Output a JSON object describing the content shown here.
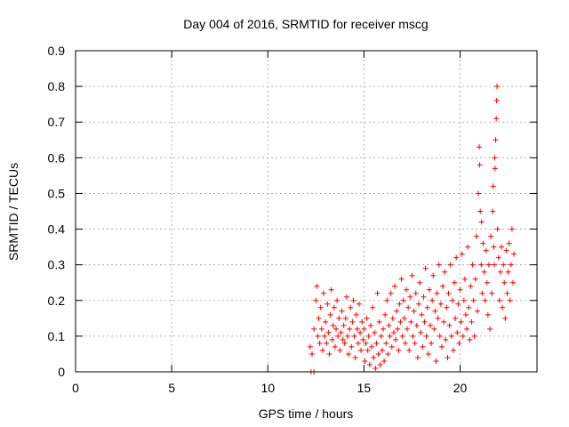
{
  "chart_data": {
    "type": "scatter",
    "title": "Day 004 of 2016, SRMTID for receiver mscg",
    "xlabel": "GPS time / hours",
    "ylabel": "SRMTID / TECUs",
    "xlim": [
      0,
      24
    ],
    "ylim": [
      0,
      0.9
    ],
    "xticks": [
      0,
      5,
      10,
      15,
      20
    ],
    "xtick_labels": [
      "0",
      "5",
      "10",
      "15",
      "20"
    ],
    "yticks": [
      0,
      0.1,
      0.2,
      0.3,
      0.4,
      0.5,
      0.6,
      0.7,
      0.8,
      0.9
    ],
    "ytick_labels": [
      "0",
      "0.1",
      "0.2",
      "0.3",
      "0.4",
      "0.5",
      "0.6",
      "0.7",
      "0.8",
      "0.9"
    ],
    "grid": true,
    "marker_color": "#ff0000",
    "series": [
      {
        "name": "SRMTID",
        "marker": "plus",
        "points": [
          [
            12.25,
            0.0
          ],
          [
            12.4,
            0.0
          ],
          [
            12.2,
            0.07
          ],
          [
            12.3,
            0.05
          ],
          [
            12.4,
            0.12
          ],
          [
            12.5,
            0.2
          ],
          [
            12.55,
            0.24
          ],
          [
            12.6,
            0.1
          ],
          [
            12.65,
            0.15
          ],
          [
            12.7,
            0.08
          ],
          [
            12.75,
            0.18
          ],
          [
            12.8,
            0.12
          ],
          [
            12.85,
            0.06
          ],
          [
            12.9,
            0.22
          ],
          [
            12.95,
            0.1
          ],
          [
            13.0,
            0.14
          ],
          [
            13.05,
            0.08
          ],
          [
            13.1,
            0.19
          ],
          [
            13.15,
            0.11
          ],
          [
            13.2,
            0.05
          ],
          [
            13.25,
            0.16
          ],
          [
            13.3,
            0.23
          ],
          [
            13.35,
            0.09
          ],
          [
            13.4,
            0.13
          ],
          [
            13.45,
            0.18
          ],
          [
            13.5,
            0.07
          ],
          [
            13.55,
            0.12
          ],
          [
            13.6,
            0.2
          ],
          [
            13.65,
            0.1
          ],
          [
            13.7,
            0.15
          ],
          [
            13.75,
            0.06
          ],
          [
            13.8,
            0.11
          ],
          [
            13.85,
            0.17
          ],
          [
            13.9,
            0.09
          ],
          [
            13.95,
            0.13
          ],
          [
            14.0,
            0.08
          ],
          [
            14.05,
            0.15
          ],
          [
            14.1,
            0.21
          ],
          [
            14.15,
            0.1
          ],
          [
            14.2,
            0.05
          ],
          [
            14.25,
            0.12
          ],
          [
            14.3,
            0.18
          ],
          [
            14.35,
            0.07
          ],
          [
            14.4,
            0.14
          ],
          [
            14.45,
            0.2
          ],
          [
            14.5,
            0.1
          ],
          [
            14.55,
            0.04
          ],
          [
            14.6,
            0.16
          ],
          [
            14.65,
            0.12
          ],
          [
            14.7,
            0.08
          ],
          [
            14.75,
            0.19
          ],
          [
            14.8,
            0.11
          ],
          [
            14.85,
            0.06
          ],
          [
            14.9,
            0.14
          ],
          [
            14.95,
            0.09
          ],
          [
            15.0,
            0.12
          ],
          [
            15.05,
            0.03
          ],
          [
            15.1,
            0.08
          ],
          [
            15.15,
            0.15
          ],
          [
            15.2,
            0.06
          ],
          [
            15.25,
            0.1
          ],
          [
            15.3,
            0.02
          ],
          [
            15.35,
            0.13
          ],
          [
            15.4,
            0.07
          ],
          [
            15.45,
            0.18
          ],
          [
            15.5,
            0.04
          ],
          [
            15.55,
            0.11
          ],
          [
            15.6,
            0.01
          ],
          [
            15.65,
            0.08
          ],
          [
            15.7,
            0.22
          ],
          [
            15.75,
            0.05
          ],
          [
            15.8,
            0.14
          ],
          [
            15.85,
            0.02
          ],
          [
            15.9,
            0.1
          ],
          [
            15.95,
            0.06
          ],
          [
            16.0,
            0.12
          ],
          [
            16.05,
            0.03
          ],
          [
            16.1,
            0.16
          ],
          [
            16.15,
            0.08
          ],
          [
            16.2,
            0.2
          ],
          [
            16.25,
            0.05
          ],
          [
            16.3,
            0.13
          ],
          [
            16.35,
            0.1
          ],
          [
            16.4,
            0.22
          ],
          [
            16.45,
            0.07
          ],
          [
            16.5,
            0.15
          ],
          [
            16.55,
            0.11
          ],
          [
            16.6,
            0.24
          ],
          [
            16.65,
            0.09
          ],
          [
            16.7,
            0.17
          ],
          [
            16.75,
            0.12
          ],
          [
            16.8,
            0.06
          ],
          [
            16.85,
            0.19
          ],
          [
            16.9,
            0.14
          ],
          [
            16.95,
            0.26
          ],
          [
            17.0,
            0.1
          ],
          [
            17.05,
            0.2
          ],
          [
            17.1,
            0.15
          ],
          [
            17.15,
            0.08
          ],
          [
            17.2,
            0.23
          ],
          [
            17.25,
            0.12
          ],
          [
            17.3,
            0.18
          ],
          [
            17.35,
            0.06
          ],
          [
            17.4,
            0.21
          ],
          [
            17.45,
            0.14
          ],
          [
            17.5,
            0.27
          ],
          [
            17.55,
            0.1
          ],
          [
            17.6,
            0.17
          ],
          [
            17.65,
            0.08
          ],
          [
            17.7,
            0.22
          ],
          [
            17.75,
            0.13
          ],
          [
            17.8,
            0.04
          ],
          [
            17.85,
            0.19
          ],
          [
            17.9,
            0.25
          ],
          [
            17.95,
            0.11
          ],
          [
            18.0,
            0.16
          ],
          [
            18.05,
            0.07
          ],
          [
            18.1,
            0.21
          ],
          [
            18.15,
            0.14
          ],
          [
            18.2,
            0.29
          ],
          [
            18.25,
            0.1
          ],
          [
            18.3,
            0.18
          ],
          [
            18.35,
            0.05
          ],
          [
            18.4,
            0.23
          ],
          [
            18.45,
            0.13
          ],
          [
            18.5,
            0.08
          ],
          [
            18.55,
            0.2
          ],
          [
            18.6,
            0.27
          ],
          [
            18.65,
            0.12
          ],
          [
            18.7,
            0.17
          ],
          [
            18.75,
            0.03
          ],
          [
            18.8,
            0.22
          ],
          [
            18.85,
            0.15
          ],
          [
            18.9,
            0.3
          ],
          [
            18.95,
            0.1
          ],
          [
            19.0,
            0.19
          ],
          [
            19.05,
            0.07
          ],
          [
            19.1,
            0.24
          ],
          [
            19.15,
            0.14
          ],
          [
            19.2,
            0.28
          ],
          [
            19.25,
            0.09
          ],
          [
            19.3,
            0.18
          ],
          [
            19.35,
            0.04
          ],
          [
            19.4,
            0.22
          ],
          [
            19.45,
            0.13
          ],
          [
            19.5,
            0.3
          ],
          [
            19.55,
            0.1
          ],
          [
            19.6,
            0.2
          ],
          [
            19.65,
            0.06
          ],
          [
            19.7,
            0.25
          ],
          [
            19.75,
            0.15
          ],
          [
            19.8,
            0.32
          ],
          [
            19.85,
            0.11
          ],
          [
            19.9,
            0.19
          ],
          [
            19.95,
            0.08
          ],
          [
            20.0,
            0.23
          ],
          [
            20.05,
            0.14
          ],
          [
            20.1,
            0.33
          ],
          [
            20.15,
            0.1
          ],
          [
            20.2,
            0.2
          ],
          [
            20.25,
            0.26
          ],
          [
            20.3,
            0.16
          ],
          [
            20.35,
            0.12
          ],
          [
            20.4,
            0.35
          ],
          [
            20.45,
            0.18
          ],
          [
            20.5,
            0.09
          ],
          [
            20.55,
            0.24
          ],
          [
            20.6,
            0.14
          ],
          [
            20.65,
            0.3
          ],
          [
            20.7,
            0.2
          ],
          [
            20.75,
            0.1
          ],
          [
            20.8,
            0.26
          ],
          [
            20.85,
            0.38
          ],
          [
            20.9,
            0.17
          ],
          [
            20.95,
            0.5
          ],
          [
            21.0,
            0.63
          ],
          [
            21.02,
            0.58
          ],
          [
            21.05,
            0.45
          ],
          [
            21.1,
            0.3
          ],
          [
            21.12,
            0.42
          ],
          [
            21.15,
            0.22
          ],
          [
            21.2,
            0.36
          ],
          [
            21.25,
            0.28
          ],
          [
            21.3,
            0.2
          ],
          [
            21.35,
            0.34
          ],
          [
            21.4,
            0.25
          ],
          [
            21.45,
            0.16
          ],
          [
            21.5,
            0.3
          ],
          [
            21.55,
            0.12
          ],
          [
            21.6,
            0.38
          ],
          [
            21.65,
            0.22
          ],
          [
            21.7,
            0.45
          ],
          [
            21.72,
            0.52
          ],
          [
            21.75,
            0.35
          ],
          [
            21.78,
            0.3
          ],
          [
            21.8,
            0.6
          ],
          [
            21.82,
            0.57
          ],
          [
            21.85,
            0.65
          ],
          [
            21.88,
            0.71
          ],
          [
            21.9,
            0.76
          ],
          [
            21.92,
            0.8
          ],
          [
            21.95,
            0.4
          ],
          [
            22.0,
            0.32
          ],
          [
            22.05,
            0.2
          ],
          [
            22.1,
            0.28
          ],
          [
            22.15,
            0.35
          ],
          [
            22.2,
            0.18
          ],
          [
            22.25,
            0.3
          ],
          [
            22.3,
            0.25
          ],
          [
            22.35,
            0.15
          ],
          [
            22.4,
            0.34
          ],
          [
            22.45,
            0.22
          ],
          [
            22.5,
            0.28
          ],
          [
            22.55,
            0.36
          ],
          [
            22.6,
            0.2
          ],
          [
            22.65,
            0.3
          ],
          [
            22.7,
            0.4
          ],
          [
            22.75,
            0.25
          ],
          [
            22.8,
            0.33
          ]
        ]
      }
    ]
  }
}
